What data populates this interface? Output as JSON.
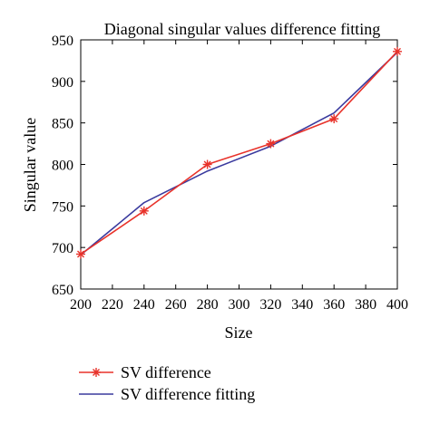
{
  "chart_data": {
    "type": "line",
    "title": "Diagonal singular values difference fitting",
    "xlabel": "Size",
    "ylabel": "Singular value",
    "xlim": [
      200,
      400
    ],
    "ylim": [
      650,
      950
    ],
    "xticks": [
      200,
      220,
      240,
      260,
      280,
      300,
      320,
      340,
      360,
      380,
      400
    ],
    "yticks": [
      650,
      700,
      750,
      800,
      850,
      900,
      950
    ],
    "grid": false,
    "legend_position": "bottom-left, below plot",
    "series": [
      {
        "name": "SV difference",
        "color": "#e8322a",
        "marker": "asterisk",
        "x": [
          200,
          240,
          280,
          320,
          360,
          400
        ],
        "y": [
          692,
          744,
          800,
          825,
          855,
          936
        ]
      },
      {
        "name": "SV difference fitting",
        "color": "#3a3a9e",
        "marker": "none",
        "x": [
          200,
          240,
          280,
          320,
          360,
          400
        ],
        "y": [
          691,
          754,
          792,
          822,
          862,
          935
        ]
      }
    ]
  }
}
